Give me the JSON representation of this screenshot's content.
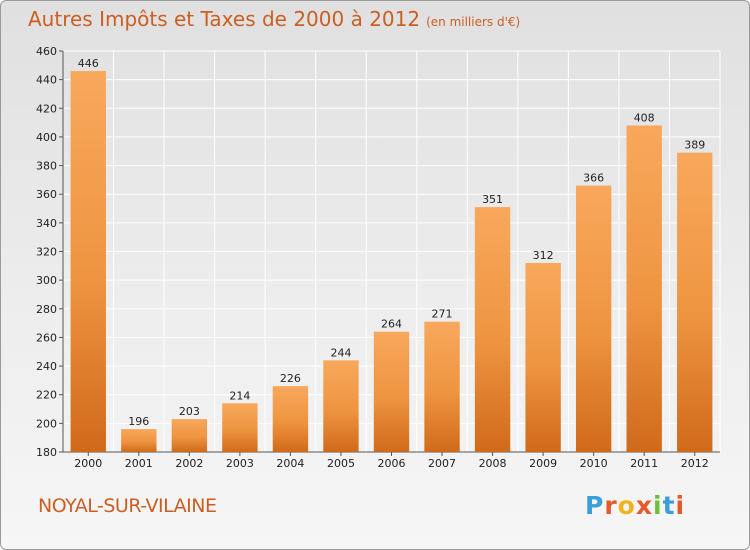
{
  "header": {
    "title": "Autres Impôts et Taxes de 2000 à 2012",
    "unit": "(en milliers d'€)"
  },
  "footer": {
    "commune": "NOYAL-SUR-VILAINE",
    "logo": "Proxiti"
  },
  "colors": {
    "bar_light": "#f7a55a",
    "bar_dark": "#d06a1a",
    "title": "#cc5e22",
    "grid": "#ffffff"
  },
  "chart_data": {
    "type": "bar",
    "title": "Autres Impôts et Taxes de 2000 à 2012",
    "subtitle": "(en milliers d'€)",
    "xlabel": "",
    "ylabel": "",
    "categories": [
      "2000",
      "2001",
      "2002",
      "2003",
      "2004",
      "2005",
      "2006",
      "2007",
      "2008",
      "2009",
      "2010",
      "2011",
      "2012"
    ],
    "values": [
      446,
      196,
      203,
      214,
      226,
      244,
      264,
      271,
      351,
      312,
      366,
      408,
      389
    ],
    "ylim": [
      180,
      460
    ],
    "yticks": [
      180,
      200,
      220,
      240,
      260,
      280,
      300,
      320,
      340,
      360,
      380,
      400,
      420,
      440,
      460
    ],
    "grid": true,
    "data_labels": true
  }
}
